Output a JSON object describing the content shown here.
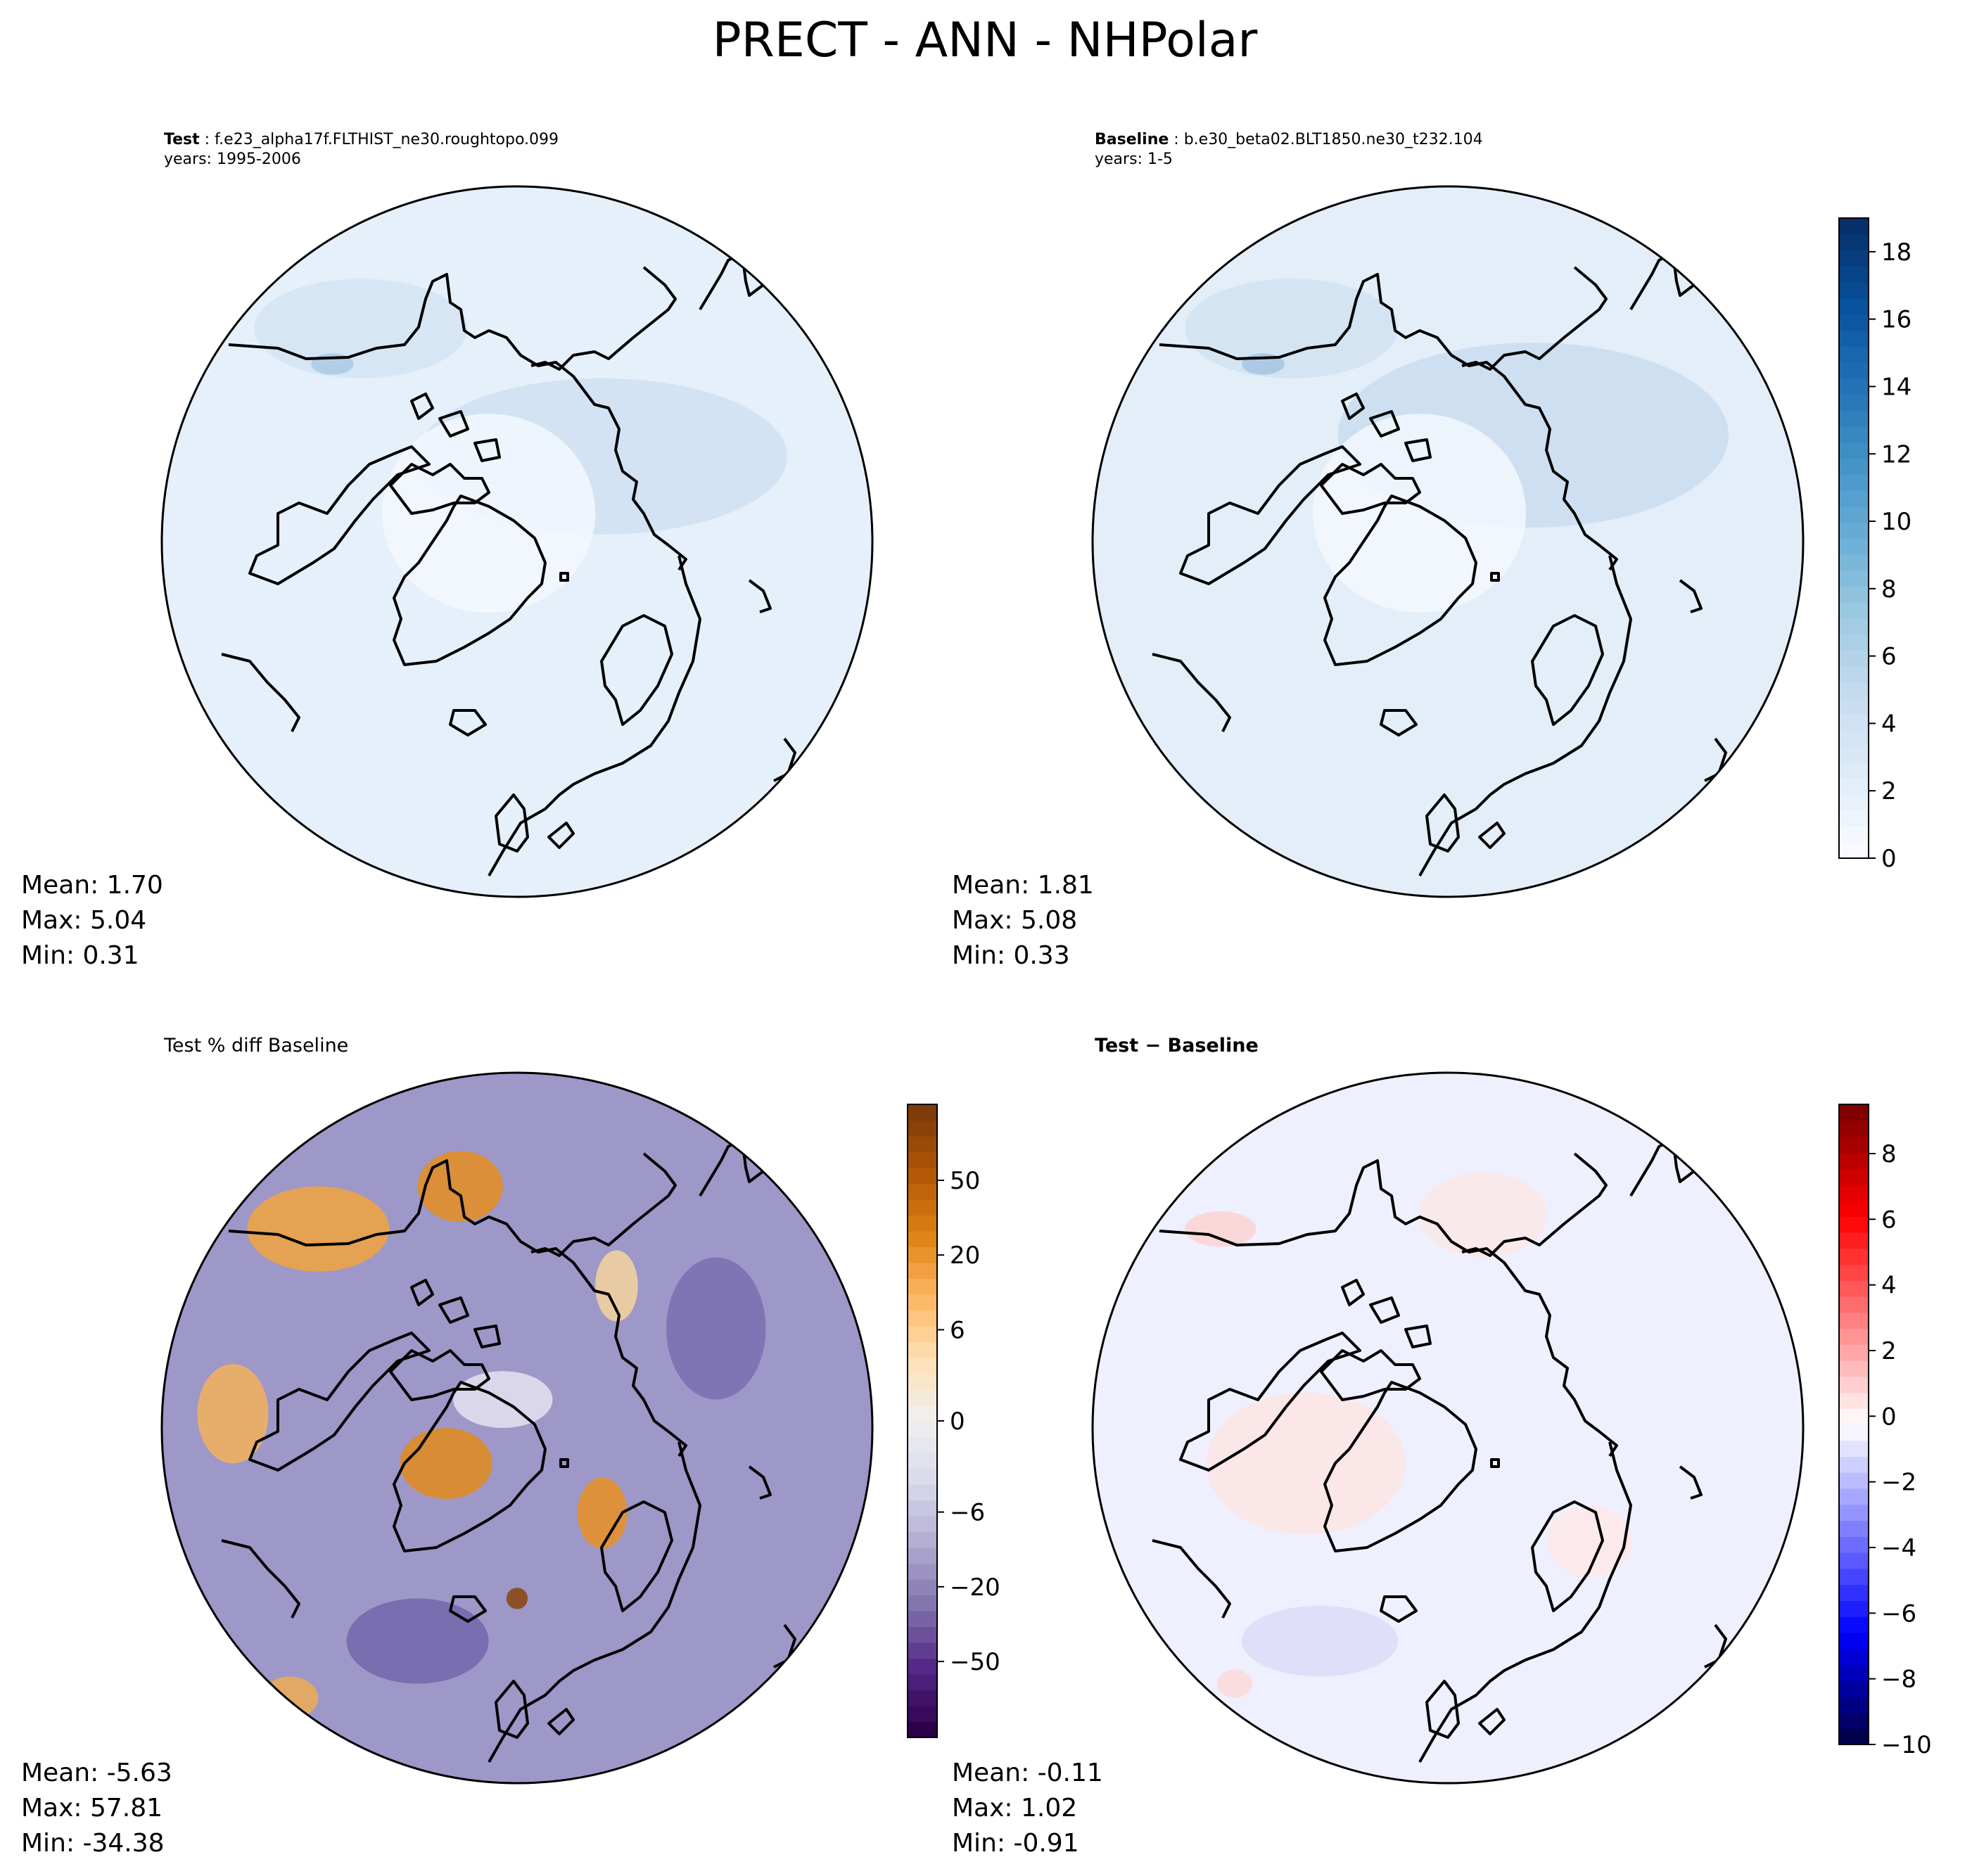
{
  "figure": {
    "title": "PRECT - ANN - NHPolar"
  },
  "panels": [
    {
      "id": "test",
      "title_bold": "Test",
      "title_rest": ": f.e23_alpha17f.FLTHIST_ne30.roughtopo.099",
      "subtitle": "years: 1995-2006",
      "stats": {
        "mean": "Mean:  1.70",
        "max": "Max:  5.04",
        "min": "Min:  0.31"
      }
    },
    {
      "id": "baseline",
      "title_bold": "Baseline",
      "title_rest": ": b.e30_beta02.BLT1850.ne30_t232.104",
      "subtitle": "years: 1-5",
      "stats": {
        "mean": "Mean:  1.81",
        "max": "Max:  5.08",
        "min": "Min:  0.33"
      }
    },
    {
      "id": "pctdiff",
      "title_bold": "",
      "title_rest": "Test % diff Baseline",
      "subtitle": "",
      "stats": {
        "mean": "Mean: -5.63",
        "max": "Max: 57.81",
        "min": "Min: -34.38"
      }
    },
    {
      "id": "diff",
      "title_bold": "Test − Baseline",
      "title_rest": "",
      "subtitle": "",
      "stats": {
        "mean": "Mean: -0.11",
        "max": "Max:  1.02",
        "min": "Min: -0.91"
      }
    }
  ],
  "colorbars": [
    {
      "id": "cb-main",
      "colormap": "Blues",
      "colors": [
        "#f7fbff",
        "#deebf7",
        "#c6dbef",
        "#9ecae1",
        "#6baed6",
        "#4292c6",
        "#2171b5",
        "#08519c",
        "#08306b"
      ],
      "range": [
        0,
        19
      ],
      "ticks": [
        "0",
        "2",
        "4",
        "6",
        "8",
        "10",
        "12",
        "14",
        "16",
        "18"
      ]
    },
    {
      "id": "cb-pct",
      "colormap": "PuOr_r",
      "colors": [
        "#2d004b",
        "#542788",
        "#8073ac",
        "#b2abd2",
        "#d8daeb",
        "#f0f0f0",
        "#fee0b6",
        "#fdb863",
        "#e08214",
        "#b35806",
        "#7f3b08"
      ],
      "ticks": [
        "50",
        "20",
        "6",
        "0",
        "−6",
        "−20",
        "−50"
      ]
    },
    {
      "id": "cb-diff",
      "colormap": "seismic",
      "colors": [
        "#00004c",
        "#0000ff",
        "#8080ff",
        "#ffffff",
        "#ff8080",
        "#ff0000",
        "#800000"
      ],
      "range": [
        -10,
        9.5
      ],
      "ticks": [
        "8",
        "6",
        "4",
        "2",
        "0",
        "−2",
        "−4",
        "−6",
        "−8",
        "−10"
      ]
    }
  ],
  "map_fields": {
    "test": {
      "base": "#e6f0fa",
      "zones": [
        [
          "#cfe0f1",
          0.62,
          0.38,
          0.52,
          0.22
        ],
        [
          "#f3f8fe",
          0.46,
          0.46,
          0.3,
          0.28
        ],
        [
          "#d4e4f3",
          0.28,
          0.2,
          0.3,
          0.14
        ],
        [
          "#a9cae4",
          0.24,
          0.25,
          0.06,
          0.03
        ]
      ]
    },
    "baseline": {
      "base": "#e3eef9",
      "zones": [
        [
          "#c9dcf0",
          0.62,
          0.35,
          0.55,
          0.26
        ],
        [
          "#f3f8fe",
          0.46,
          0.46,
          0.3,
          0.28
        ],
        [
          "#d1e2f2",
          0.28,
          0.2,
          0.3,
          0.14
        ],
        [
          "#a4c6e2",
          0.24,
          0.25,
          0.06,
          0.03
        ]
      ]
    },
    "pctdiff": {
      "base": "#9d98c8",
      "zones": [
        [
          "#f2a33e",
          0.22,
          0.22,
          0.2,
          0.12
        ],
        [
          "#e58d1e",
          0.42,
          0.16,
          0.12,
          0.1
        ],
        [
          "#f5b25b",
          0.1,
          0.48,
          0.1,
          0.14
        ],
        [
          "#e38a1c",
          0.4,
          0.55,
          0.13,
          0.1
        ],
        [
          "#e98f22",
          0.62,
          0.62,
          0.07,
          0.1
        ],
        [
          "#8a4209",
          0.5,
          0.74,
          0.03,
          0.03
        ],
        [
          "#e4e2ef",
          0.48,
          0.46,
          0.14,
          0.08
        ],
        [
          "#7b6fb0",
          0.78,
          0.36,
          0.14,
          0.2
        ],
        [
          "#7266ab",
          0.36,
          0.8,
          0.2,
          0.12
        ],
        [
          "#efab52",
          0.18,
          0.88,
          0.08,
          0.06
        ],
        [
          "#f7d49c",
          0.64,
          0.3,
          0.06,
          0.1
        ]
      ]
    },
    "diff": {
      "base": "#eef0fd",
      "zones": [
        [
          "#fde4e4",
          0.3,
          0.55,
          0.28,
          0.2
        ],
        [
          "#fbd2d2",
          0.18,
          0.22,
          0.1,
          0.05
        ],
        [
          "#dcdcf9",
          0.32,
          0.8,
          0.22,
          0.1
        ],
        [
          "#fce8e8",
          0.55,
          0.2,
          0.18,
          0.12
        ],
        [
          "#fbd9d9",
          0.2,
          0.86,
          0.05,
          0.04
        ],
        [
          "#fde8e8",
          0.7,
          0.66,
          0.12,
          0.1
        ]
      ]
    }
  }
}
